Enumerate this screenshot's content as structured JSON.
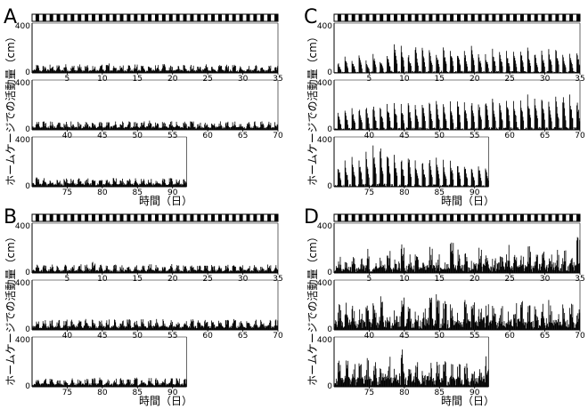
{
  "figure": {
    "y_axis_label": "ホームケージでの活動量（cm）",
    "x_axis_label": "時間（日）",
    "y_max_label": "400",
    "y_min_label": "0"
  },
  "chart_data": [
    {
      "panel": "A",
      "type": "bar",
      "pattern": "low-regular",
      "ylim": [
        0,
        400
      ],
      "rows": [
        {
          "day_start": 1,
          "day_end": 35,
          "tick_labels": [
            "5",
            "10",
            "15",
            "20",
            "25",
            "30",
            "35"
          ]
        },
        {
          "day_start": 36,
          "day_end": 70,
          "tick_labels": [
            "40",
            "45",
            "50",
            "55",
            "60",
            "65",
            "70"
          ]
        },
        {
          "day_start": 71,
          "day_end": 92,
          "tick_labels": [
            "75",
            "80",
            "85",
            "90"
          ]
        }
      ],
      "daily_peak_values": [
        70,
        60,
        75,
        68,
        72,
        64,
        70,
        62,
        58,
        66,
        80,
        70,
        65,
        72,
        68,
        70,
        64,
        66,
        72,
        62,
        60,
        70,
        68,
        66,
        72,
        60,
        64,
        70,
        66,
        58,
        62,
        70,
        68,
        60,
        62,
        72,
        68,
        75,
        70,
        66,
        70,
        72,
        68,
        74,
        70,
        66,
        72,
        70,
        68,
        64,
        70,
        75,
        70,
        66,
        72,
        70,
        68,
        72,
        66,
        70,
        68,
        72,
        70,
        74,
        66,
        68,
        72,
        70,
        66,
        68,
        78,
        72,
        68,
        70,
        66,
        74,
        70,
        68,
        72,
        66,
        70,
        74,
        68,
        70,
        72,
        66,
        70,
        68,
        72,
        70,
        68,
        66
      ],
      "light_dark_bar": "alternating"
    },
    {
      "panel": "B",
      "type": "bar",
      "pattern": "low-regular",
      "ylim": [
        0,
        400
      ],
      "rows": [
        {
          "day_start": 1,
          "day_end": 35,
          "tick_labels": [
            "5",
            "10",
            "15",
            "20",
            "25",
            "30",
            "35"
          ]
        },
        {
          "day_start": 36,
          "day_end": 70,
          "tick_labels": [
            "40",
            "45",
            "50",
            "55",
            "60",
            "65",
            "70"
          ]
        },
        {
          "day_start": 71,
          "day_end": 92,
          "tick_labels": [
            "75",
            "80",
            "85",
            "90"
          ]
        }
      ],
      "daily_peak_values": [
        68,
        64,
        72,
        60,
        70,
        66,
        74,
        68,
        92,
        70,
        66,
        72,
        64,
        70,
        68,
        62,
        70,
        66,
        64,
        72,
        68,
        60,
        66,
        70,
        68,
        64,
        70,
        66,
        62,
        68,
        70,
        66,
        64,
        70,
        68,
        80,
        84,
        86,
        82,
        88,
        84,
        86,
        90,
        84,
        82,
        86,
        88,
        84,
        86,
        82,
        88,
        84,
        90,
        86,
        84,
        88,
        82,
        86,
        84,
        88,
        86,
        82,
        84,
        88,
        86,
        84,
        82,
        86,
        88,
        84,
        72,
        70,
        74,
        68,
        72,
        76,
        70,
        68,
        72,
        74,
        70,
        68,
        72,
        70,
        74,
        68,
        72,
        70,
        74,
        70,
        72,
        68
      ],
      "light_dark_bar": "alternating"
    },
    {
      "panel": "C",
      "type": "bar",
      "pattern": "high-regular",
      "ylim": [
        0,
        400
      ],
      "rows": [
        {
          "day_start": 1,
          "day_end": 35,
          "tick_labels": [
            "5",
            "10",
            "15",
            "20",
            "25",
            "30",
            "35"
          ]
        },
        {
          "day_start": 36,
          "day_end": 70,
          "tick_labels": [
            "40",
            "45",
            "50",
            "55",
            "60",
            "65",
            "70"
          ]
        },
        {
          "day_start": 71,
          "day_end": 92,
          "tick_labels": [
            "75",
            "80",
            "85",
            "90"
          ]
        }
      ],
      "daily_peak_values": [
        90,
        140,
        120,
        150,
        110,
        160,
        120,
        150,
        260,
        220,
        170,
        240,
        210,
        200,
        180,
        230,
        210,
        190,
        200,
        220,
        170,
        160,
        200,
        210,
        180,
        190,
        200,
        210,
        170,
        180,
        200,
        210,
        160,
        170,
        190,
        150,
        170,
        190,
        200,
        210,
        220,
        200,
        230,
        250,
        210,
        240,
        220,
        250,
        240,
        260,
        250,
        230,
        260,
        240,
        270,
        250,
        280,
        260,
        250,
        290,
        270,
        260,
        300,
        280,
        290,
        270,
        300,
        310,
        290,
        280,
        200,
        220,
        260,
        240,
        300,
        340,
        360,
        320,
        280,
        260,
        300,
        240,
        230,
        250,
        260,
        220,
        230,
        200,
        210,
        190,
        180,
        170
      ],
      "light_dark_bar": "alternating"
    },
    {
      "panel": "D",
      "type": "bar",
      "pattern": "high-irregular",
      "ylim": [
        0,
        400
      ],
      "rows": [
        {
          "day_start": 1,
          "day_end": 35,
          "tick_labels": [
            "5",
            "10",
            "15",
            "20",
            "25",
            "30",
            "35"
          ]
        },
        {
          "day_start": 36,
          "day_end": 70,
          "tick_labels": [
            "40",
            "45",
            "50",
            "55",
            "60",
            "65",
            "70"
          ]
        },
        {
          "day_start": 71,
          "day_end": 92,
          "tick_labels": [
            "75",
            "80",
            "85",
            "90"
          ]
        }
      ],
      "daily_peak_values": [
        150,
        90,
        160,
        120,
        200,
        80,
        140,
        180,
        110,
        230,
        190,
        150,
        120,
        240,
        160,
        110,
        250,
        200,
        170,
        130,
        220,
        190,
        140,
        210,
        230,
        160,
        180,
        240,
        150,
        200,
        170,
        220,
        190,
        160,
        300,
        210,
        250,
        220,
        180,
        230,
        260,
        300,
        200,
        170,
        280,
        240,
        200,
        190,
        260,
        290,
        240,
        210,
        180,
        250,
        260,
        230,
        270,
        200,
        240,
        180,
        220,
        250,
        210,
        190,
        240,
        260,
        200,
        230,
        210,
        180,
        220,
        230,
        200,
        210,
        240,
        220,
        200,
        260,
        190,
        300,
        230,
        220,
        200,
        250,
        210,
        230,
        190,
        200,
        220,
        180,
        200,
        260
      ],
      "light_dark_bar": "alternating"
    }
  ]
}
